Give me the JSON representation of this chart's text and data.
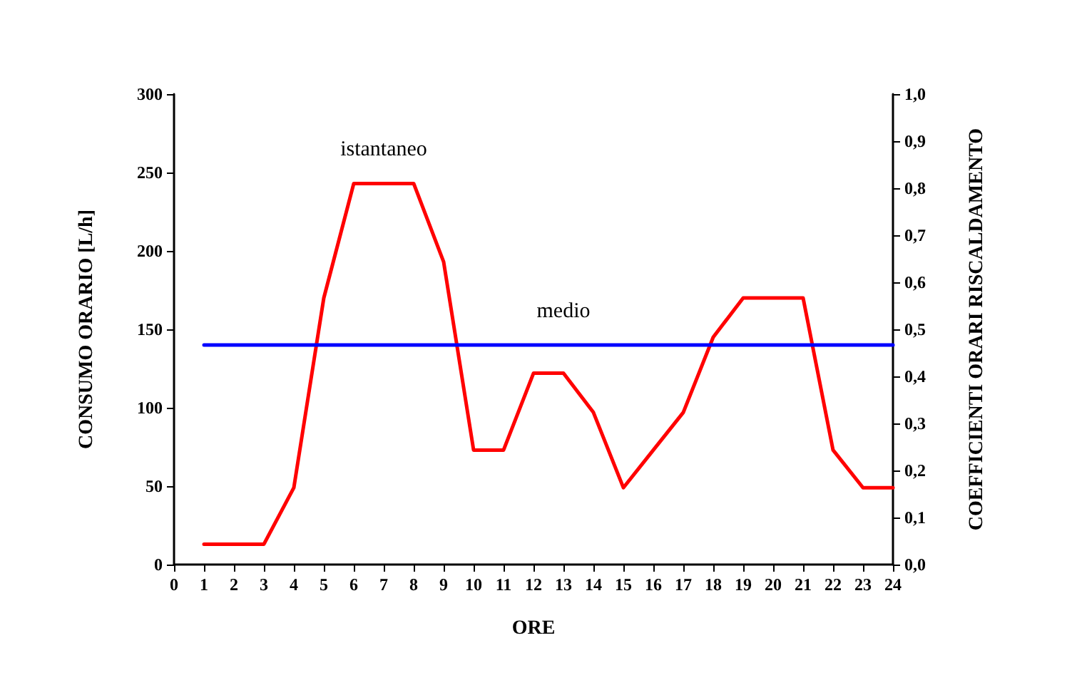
{
  "chart_data": {
    "type": "line",
    "xlabel": "ORE",
    "ylabel": "CONSUMO ORARIO [L/h]",
    "y2label": "COEFFICIENTI ORARI RISCALDAMENTO",
    "x": [
      1,
      2,
      3,
      4,
      5,
      6,
      7,
      8,
      9,
      10,
      11,
      12,
      13,
      14,
      15,
      16,
      17,
      18,
      19,
      20,
      21,
      22,
      23,
      24
    ],
    "series": [
      {
        "name": "istantaneo",
        "color": "#ff0000",
        "values": [
          13,
          13,
          13,
          49,
          170,
          243,
          243,
          243,
          193,
          73,
          73,
          122,
          122,
          97,
          49,
          73,
          97,
          145,
          170,
          170,
          170,
          73,
          49,
          49
        ]
      },
      {
        "name": "medio",
        "color": "#0000ff",
        "values": [
          140,
          140,
          140,
          140,
          140,
          140,
          140,
          140,
          140,
          140,
          140,
          140,
          140,
          140,
          140,
          140,
          140,
          140,
          140,
          140,
          140,
          140,
          140,
          140
        ]
      }
    ],
    "xlim": [
      0,
      24
    ],
    "xticks": [
      0,
      1,
      2,
      3,
      4,
      5,
      6,
      7,
      8,
      9,
      10,
      11,
      12,
      13,
      14,
      15,
      16,
      17,
      18,
      19,
      20,
      21,
      22,
      23,
      24
    ],
    "ylim": [
      0,
      300
    ],
    "yticks": [
      0,
      50,
      100,
      150,
      200,
      250,
      300
    ],
    "y2lim": [
      0,
      1
    ],
    "y2ticks": [
      {
        "value": 0,
        "label": "0,0"
      },
      {
        "value": 0.1,
        "label": "0,1"
      },
      {
        "value": 0.2,
        "label": "0,2"
      },
      {
        "value": 0.3,
        "label": "0,3"
      },
      {
        "value": 0.4,
        "label": "0,4"
      },
      {
        "value": 0.5,
        "label": "0,5"
      },
      {
        "value": 0.6,
        "label": "0,6"
      },
      {
        "value": 0.7,
        "label": "0,7"
      },
      {
        "value": 0.8,
        "label": "0,8"
      },
      {
        "value": 0.9,
        "label": "0,9"
      },
      {
        "value": 1,
        "label": "1,0"
      }
    ],
    "grid": false,
    "legend": false,
    "marker": "none",
    "line_style": "solid"
  }
}
